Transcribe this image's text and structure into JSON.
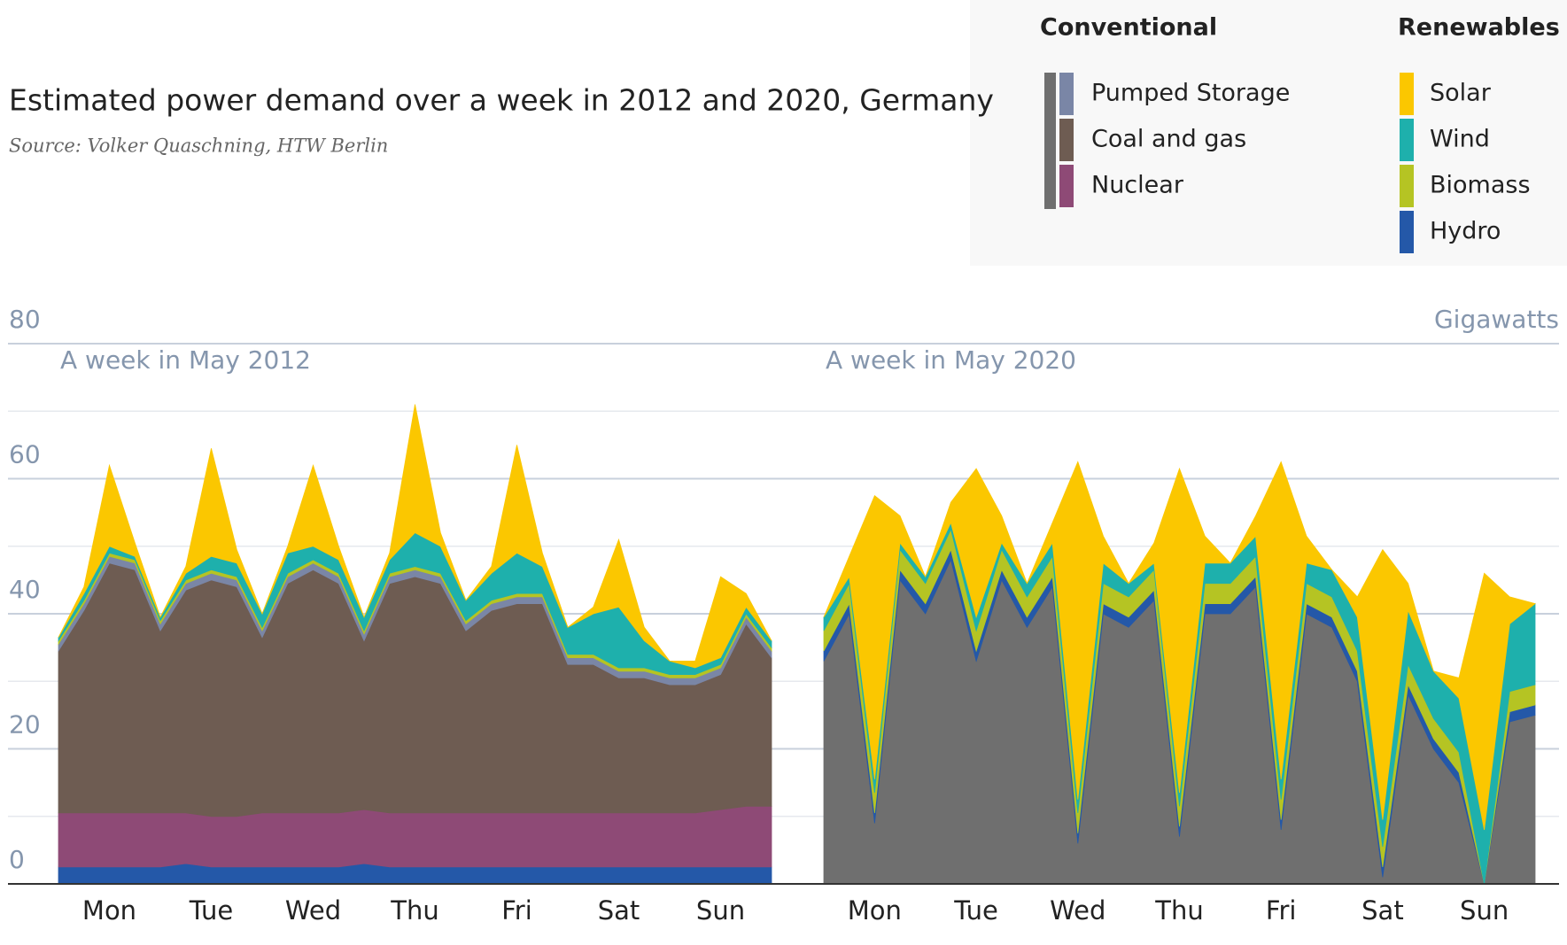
{
  "title": "Estimated power demand over a week in 2012 and 2020, Germany",
  "source": "Source: Volker Quaschning, HTW Berlin",
  "legend_renewables": "Renewables",
  "y_label": "Gigawatts",
  "chart_data": [
    {
      "type": "area",
      "title": "A week in May 2012",
      "x": [
        0,
        6,
        12,
        18,
        24,
        30,
        36,
        42,
        48,
        54,
        60,
        66,
        72,
        78,
        84,
        90,
        96,
        102,
        108,
        114,
        120,
        126,
        132,
        138,
        144,
        150,
        156,
        162,
        168
      ],
      "xlim": [
        0,
        168
      ],
      "xticks": [
        {
          "value": 12,
          "label": "Mon"
        },
        {
          "value": 36,
          "label": "Tue"
        },
        {
          "value": 60,
          "label": "Wed"
        },
        {
          "value": 84,
          "label": "Thu"
        },
        {
          "value": 108,
          "label": "Fri"
        },
        {
          "value": 132,
          "label": "Sat"
        },
        {
          "value": 156,
          "label": "Sun"
        }
      ],
      "ylim": [
        0,
        80
      ],
      "yticks": [
        0,
        20,
        40,
        60,
        80
      ],
      "yminor": [
        10,
        30,
        50,
        70
      ],
      "series": [
        {
          "name": "Hydro",
          "color": "#2458a8",
          "values": [
            2.5,
            2.5,
            2.5,
            2.5,
            2.5,
            3,
            2.5,
            2.5,
            2.5,
            2.5,
            2.5,
            2.5,
            3,
            2.5,
            2.5,
            2.5,
            2.5,
            2.5,
            2.5,
            2.5,
            2.5,
            2.5,
            2.5,
            2.5,
            2.5,
            2.5,
            2.5,
            2.5,
            2.5
          ]
        },
        {
          "name": "Nuclear",
          "color": "#8e4a76",
          "values": [
            8,
            8,
            8,
            8,
            8,
            7.5,
            7.5,
            7.5,
            8,
            8,
            8,
            8,
            8,
            8,
            8,
            8,
            8,
            8,
            8,
            8,
            8,
            8,
            8,
            8,
            8,
            8,
            8.5,
            9,
            9
          ]
        },
        {
          "name": "Coal and gas",
          "color": "#6e5c52",
          "values": [
            24,
            30,
            37,
            36,
            27,
            33,
            35,
            34,
            26,
            34,
            36,
            34,
            25,
            34,
            35,
            34,
            27,
            30,
            31,
            31,
            22,
            22,
            20,
            20,
            19,
            19,
            20,
            27,
            22
          ]
        },
        {
          "name": "Pumped Storage",
          "color": "#7a86a6",
          "values": [
            1,
            1,
            1,
            1,
            1,
            1,
            1,
            1,
            1,
            1,
            1,
            1,
            1,
            1,
            1,
            1,
            1,
            1,
            1,
            1,
            1,
            1,
            1,
            1,
            1,
            1,
            1,
            1,
            1
          ]
        },
        {
          "name": "Biomass",
          "color": "#b5c423",
          "values": [
            0.5,
            0.5,
            0.5,
            0.5,
            0.5,
            0.5,
            0.5,
            0.5,
            0.5,
            0.5,
            0.5,
            0.5,
            0.5,
            0.5,
            0.5,
            0.5,
            0.5,
            0.5,
            0.5,
            0.5,
            0.5,
            0.5,
            0.5,
            0.5,
            0.5,
            0.5,
            0.5,
            0.5,
            0.5
          ]
        },
        {
          "name": "Wind",
          "color": "#1eb0ac",
          "values": [
            0.5,
            1,
            1,
            0.5,
            0.5,
            1,
            2,
            2,
            2,
            3,
            2,
            2,
            2,
            2,
            5,
            4,
            3,
            4,
            6,
            4,
            4,
            6,
            9,
            4,
            2,
            1,
            1,
            1,
            1
          ]
        },
        {
          "name": "Solar",
          "color": "#fbc700",
          "values": [
            0,
            1,
            12,
            2,
            0,
            1,
            16,
            2,
            0,
            1,
            12,
            2,
            0,
            1,
            19,
            2,
            0,
            1,
            16,
            2,
            0,
            1,
            10,
            2,
            0,
            1,
            12,
            2,
            0
          ]
        }
      ]
    },
    {
      "type": "area",
      "title": "A week in May 2020",
      "x": [
        0,
        6,
        12,
        18,
        24,
        30,
        36,
        42,
        48,
        54,
        60,
        66,
        72,
        78,
        84,
        90,
        96,
        102,
        108,
        114,
        120,
        126,
        132,
        138,
        144,
        150,
        156,
        162,
        168
      ],
      "xlim": [
        0,
        168
      ],
      "xticks": [
        {
          "value": 12,
          "label": "Mon"
        },
        {
          "value": 36,
          "label": "Tue"
        },
        {
          "value": 60,
          "label": "Wed"
        },
        {
          "value": 84,
          "label": "Thu"
        },
        {
          "value": 108,
          "label": "Fri"
        },
        {
          "value": 132,
          "label": "Sat"
        },
        {
          "value": 156,
          "label": "Sun"
        }
      ],
      "ylim": [
        0,
        80
      ],
      "yticks": [
        0,
        20,
        40,
        60,
        80
      ],
      "yminor": [
        10,
        30,
        50,
        70
      ],
      "series": [
        {
          "name": "Conventional",
          "color": "#6f6f6f",
          "values": [
            33,
            40,
            9,
            45,
            40,
            48,
            33,
            45,
            38,
            44,
            6,
            40,
            38,
            42,
            7,
            40,
            40,
            44,
            8,
            40,
            38,
            30,
            1,
            28,
            20,
            15,
            0,
            24,
            25
          ]
        },
        {
          "name": "Hydro",
          "color": "#2458a8",
          "values": [
            1.5,
            1.5,
            1.5,
            1.5,
            1.5,
            1.5,
            1.5,
            1.5,
            1.5,
            1.5,
            1.5,
            1.5,
            1.5,
            1.5,
            1.5,
            1.5,
            1.5,
            1.5,
            1.5,
            1.5,
            1.5,
            1.5,
            1.5,
            1.5,
            1.5,
            1.5,
            0,
            1.5,
            1.5
          ]
        },
        {
          "name": "Biomass",
          "color": "#b5c423",
          "values": [
            3,
            3,
            3,
            3,
            3,
            3,
            3,
            3,
            3,
            3,
            3,
            3,
            3,
            3,
            3,
            3,
            3,
            3,
            3,
            3,
            3,
            3,
            3,
            3,
            3,
            3,
            0,
            3,
            3
          ]
        },
        {
          "name": "Wind",
          "color": "#1eb0ac",
          "values": [
            2,
            1,
            2,
            1,
            1,
            1,
            2,
            1,
            2,
            2,
            2,
            3,
            2,
            1,
            2,
            3,
            3,
            3,
            3,
            3,
            4,
            5,
            4,
            8,
            7,
            8,
            8,
            10,
            12
          ]
        },
        {
          "name": "Solar",
          "color": "#fbc700",
          "values": [
            0,
            3,
            42,
            4,
            0,
            3,
            22,
            4,
            0,
            3,
            50,
            4,
            0,
            3,
            48,
            4,
            0,
            3,
            47,
            4,
            0,
            3,
            40,
            4,
            0,
            3,
            38,
            4,
            0
          ]
        }
      ]
    }
  ]
}
